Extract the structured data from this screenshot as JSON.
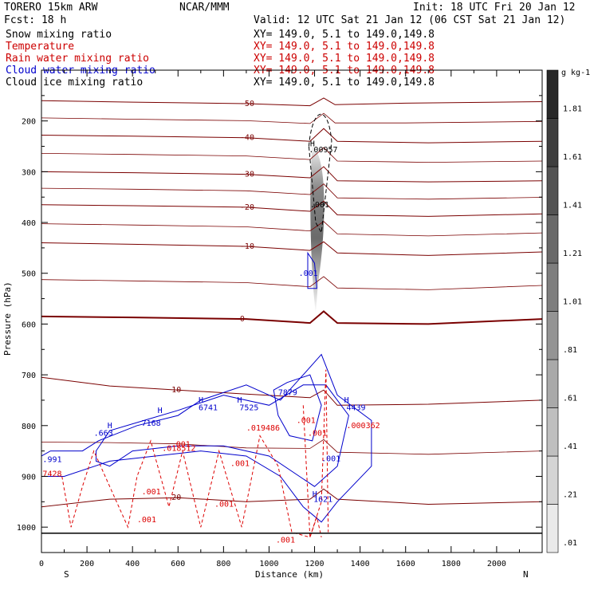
{
  "header": {
    "model": "TORERO   15km ARW",
    "org": "NCAR/MMM",
    "init": "Init: 18 UTC Fri 20 Jan 12",
    "fcst": "Fcst:    18 h",
    "valid": "Valid: 12 UTC Sat 21 Jan 12 (06 CST Sat 21 Jan 12)"
  },
  "fields": [
    {
      "name": "Snow mixing ratio",
      "xy": "XY= 149.0,   5.1 to 149.0,149.8",
      "color": "#000000"
    },
    {
      "name": "Temperature",
      "xy": "XY= 149.0,   5.1 to 149.0,149.8",
      "color": "#cc0000"
    },
    {
      "name": "Rain water mixing ratio",
      "xy": "XY= 149.0,   5.1 to 149.0,149.8",
      "color": "#cc0000"
    },
    {
      "name": "Cloud water mixing ratio",
      "xy": "XY= 149.0,   5.1 to 149.0,149.8",
      "color": "#0000cc"
    },
    {
      "name": "Cloud ice mixing ratio",
      "xy": "XY= 149.0,   5.1 to 149.0,149.8",
      "color": "#000000"
    }
  ],
  "colors": {
    "temperature": "#7a0000",
    "zero_isotherm": "#7a0000",
    "rain": "#dd0000",
    "cloud_water": "#0000cc",
    "cloud_ice": "#000000"
  },
  "colorbar": {
    "unit": "g kg-1",
    "labels": [
      "1.81",
      "1.61",
      "1.41",
      "1.21",
      "1.01",
      ".81",
      ".61",
      ".41",
      ".21",
      ".01"
    ],
    "levels": [
      0.01,
      0.21,
      0.41,
      0.61,
      0.81,
      1.01,
      1.21,
      1.41,
      1.61,
      1.81
    ]
  },
  "chart_data": {
    "type": "cross-section",
    "xlabel": "Distance (km)",
    "ylabel": "Pressure (hPa)",
    "xlim": [
      0,
      2200
    ],
    "ylim": [
      1050,
      100
    ],
    "x_ticks": [
      0,
      200,
      400,
      600,
      800,
      1000,
      1200,
      1400,
      1600,
      1800,
      2000
    ],
    "y_ticks": [
      200,
      300,
      400,
      500,
      600,
      700,
      800,
      900,
      1000
    ],
    "x_end_labels": {
      "left": "S",
      "right": "N"
    },
    "temperature_contours": [
      {
        "t": -50,
        "label": "-50",
        "x": [
          0,
          400,
          900,
          1180,
          1240,
          1290,
          1600,
          2200
        ],
        "p": [
          160,
          163,
          166,
          170,
          155,
          168,
          165,
          162
        ]
      },
      {
        "t": -40,
        "label": "-40",
        "x": [
          0,
          400,
          900,
          1180,
          1240,
          1300,
          1700,
          2200
        ],
        "p": [
          228,
          230,
          233,
          240,
          215,
          240,
          243,
          240
        ]
      },
      {
        "t": -30,
        "label": "-30",
        "x": [
          0,
          400,
          900,
          1180,
          1240,
          1300,
          1700,
          2200
        ],
        "p": [
          300,
          302,
          305,
          312,
          290,
          318,
          320,
          318
        ]
      },
      {
        "t": -20,
        "label": "-20",
        "x": [
          0,
          400,
          900,
          1180,
          1240,
          1300,
          1700,
          2200
        ],
        "p": [
          365,
          367,
          370,
          378,
          358,
          385,
          388,
          383
        ]
      },
      {
        "t": -10,
        "label": "-10",
        "x": [
          0,
          400,
          900,
          1180,
          1240,
          1300,
          1700,
          2200
        ],
        "p": [
          440,
          443,
          447,
          455,
          438,
          460,
          465,
          458
        ]
      },
      {
        "t": 0,
        "label": "0",
        "x": [
          0,
          400,
          900,
          1180,
          1240,
          1300,
          1700,
          2200
        ],
        "p": [
          585,
          587,
          590,
          598,
          575,
          598,
          600,
          590
        ]
      },
      {
        "t": 10,
        "label": "10",
        "x": [
          0,
          300,
          600,
          900,
          1180,
          1240,
          1300,
          1700,
          2200
        ],
        "p": [
          705,
          722,
          730,
          738,
          745,
          730,
          760,
          758,
          750
        ]
      },
      {
        "t": 20,
        "label": "20",
        "x": [
          0,
          300,
          600,
          900,
          1180,
          1240,
          1300,
          1700,
          2200
        ],
        "p": [
          960,
          945,
          942,
          950,
          945,
          925,
          945,
          955,
          950
        ]
      }
    ],
    "snow_max_label": ".00957",
    "cloud_ice_labels": [
      ".001"
    ],
    "cloud_water_labels": [
      ".001",
      ".663",
      ".991",
      "7168",
      "6741",
      "7525",
      "7879",
      "4439",
      "1621",
      ".001"
    ],
    "rain_labels": [
      ".001",
      ".001",
      ".001",
      ".001",
      ".001",
      ".001",
      ".001",
      ".001",
      ".018512",
      ".019486",
      ".000362",
      "7428"
    ],
    "h_markers": [
      "H",
      "H",
      "H",
      "H",
      "H",
      "H",
      "H"
    ],
    "dashed_labels": [
      "-50",
      "-40",
      "-30",
      "-20",
      "-10",
      "0",
      "10",
      "20"
    ]
  }
}
